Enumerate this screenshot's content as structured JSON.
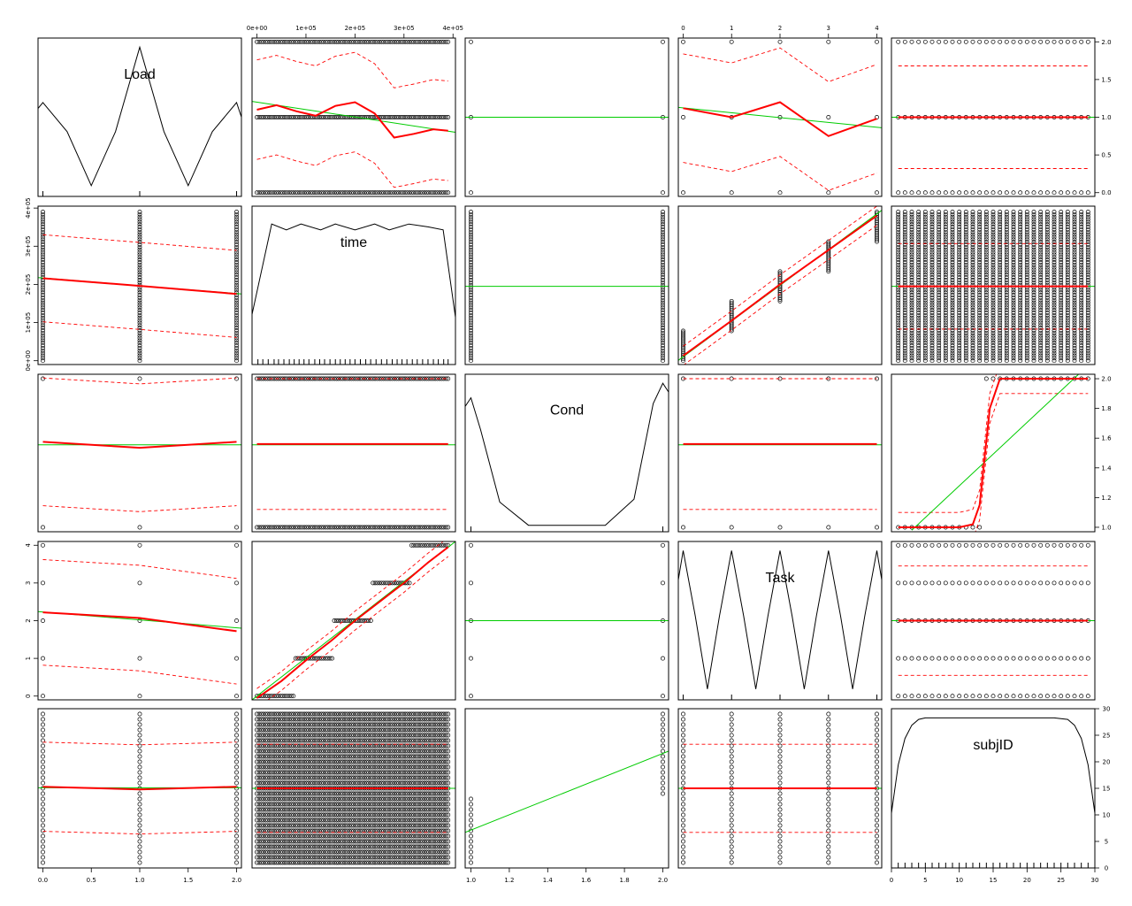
{
  "chart_data": {
    "type": "scatter",
    "subtype": "scatterplot-matrix",
    "variables": [
      "Load",
      "time",
      "Cond",
      "Task",
      "subjID"
    ],
    "domains": {
      "Load": [
        -0.05,
        2.05
      ],
      "time": [
        -10000,
        405000
      ],
      "Cond": [
        0.97,
        2.03
      ],
      "Task": [
        -0.1,
        4.1
      ],
      "subjID": [
        0,
        30
      ]
    },
    "axis_ticks": {
      "Load": [
        "0.0",
        "0.5",
        "1.0",
        "1.5",
        "2.0"
      ],
      "time": [
        "0e+00",
        "1e+05",
        "2e+05",
        "3e+05",
        "4e+05"
      ],
      "Cond": [
        "1.0",
        "1.2",
        "1.4",
        "1.6",
        "1.8",
        "2.0"
      ],
      "Task": [
        "0",
        "1",
        "2",
        "3",
        "4"
      ],
      "subjID": [
        "0",
        "5",
        "10",
        "15",
        "20",
        "25",
        "30"
      ]
    },
    "axis_tick_values": {
      "Load": [
        0,
        0.5,
        1,
        1.5,
        2
      ],
      "time": [
        0,
        100000,
        200000,
        300000,
        400000
      ],
      "Cond": [
        1.0,
        1.2,
        1.4,
        1.6,
        1.8,
        2.0
      ],
      "Task": [
        0,
        1,
        2,
        3,
        4
      ],
      "subjID": [
        0,
        5,
        10,
        15,
        20,
        25,
        30
      ]
    },
    "observations": {
      "Load_levels": [
        0,
        1,
        2
      ],
      "Cond_levels": [
        1,
        2
      ],
      "Task_levels": [
        0,
        1,
        2,
        3,
        4
      ],
      "subjID_values": [
        1,
        2,
        3,
        4,
        5,
        6,
        7,
        8,
        9,
        10,
        11,
        12,
        13,
        14,
        15,
        16,
        17,
        18,
        19,
        20,
        21,
        22,
        23,
        24,
        25,
        26,
        27,
        28,
        29
      ],
      "subjID_by_Cond": {
        "1": [
          1,
          2,
          3,
          4,
          5,
          6,
          7,
          8,
          9,
          10,
          11,
          12,
          13
        ],
        "2": [
          14,
          15,
          16,
          17,
          18,
          19,
          20,
          21,
          22,
          23,
          24,
          25,
          26,
          27,
          28,
          29
        ]
      },
      "time_range": [
        0,
        390000
      ]
    },
    "diagonal": {
      "Load": {
        "x": [
          -0.05,
          0.0,
          0.25,
          0.5,
          0.75,
          1.0,
          1.25,
          1.5,
          1.75,
          2.0,
          2.05
        ],
        "y": [
          0.58,
          0.62,
          0.42,
          0.05,
          0.42,
          1.0,
          0.42,
          0.05,
          0.42,
          0.62,
          0.52
        ]
      },
      "time": {
        "x": [
          -10000,
          30000,
          60000,
          90000,
          130000,
          160000,
          200000,
          240000,
          270000,
          310000,
          350000,
          380000,
          405000
        ],
        "y": [
          0.32,
          0.94,
          0.9,
          0.94,
          0.9,
          0.94,
          0.9,
          0.94,
          0.9,
          0.94,
          0.92,
          0.9,
          0.3
        ]
      },
      "Cond": {
        "x": [
          0.97,
          1.0,
          1.05,
          1.15,
          1.3,
          1.5,
          1.7,
          1.85,
          1.95,
          2.0,
          2.03
        ],
        "y": [
          0.84,
          0.9,
          0.68,
          0.18,
          0.02,
          0.02,
          0.02,
          0.2,
          0.86,
          1.0,
          0.94
        ]
      },
      "Task": {
        "x": [
          -0.1,
          0.0,
          0.25,
          0.5,
          0.75,
          1.0,
          1.25,
          1.5,
          1.75,
          2.0,
          2.25,
          2.5,
          2.75,
          3.0,
          3.25,
          3.5,
          3.75,
          4.0,
          4.1
        ],
        "y": [
          0.8,
          1.0,
          0.55,
          0.05,
          0.55,
          1.0,
          0.55,
          0.05,
          0.55,
          1.0,
          0.55,
          0.05,
          0.55,
          1.0,
          0.55,
          0.05,
          0.55,
          1.0,
          0.8
        ]
      },
      "subjID": {
        "x": [
          0,
          1,
          2,
          3,
          4,
          5,
          8,
          12,
          18,
          24,
          26,
          27,
          28,
          29,
          30
        ],
        "y": [
          0.35,
          0.68,
          0.86,
          0.95,
          0.99,
          1.0,
          1.0,
          1.0,
          1.0,
          1.0,
          0.99,
          0.95,
          0.86,
          0.68,
          0.35
        ]
      }
    },
    "rug": {
      "time": [
        2000,
        12000,
        23000,
        35000,
        44000,
        55000,
        66000,
        76000,
        86000,
        96000,
        106000,
        118000,
        128000,
        138000,
        149000,
        160000,
        170000,
        180000,
        190000,
        200000,
        211000,
        222000,
        232000,
        243000,
        254000,
        265000,
        276000,
        286000,
        296000,
        306000,
        317000,
        327000,
        338000,
        349000,
        360000,
        370000,
        381000,
        390000
      ],
      "subjID": [
        1,
        2,
        3,
        4,
        5,
        6,
        7,
        8,
        9,
        10,
        11,
        12,
        13,
        14,
        15,
        16,
        17,
        18,
        19,
        20,
        21,
        22,
        23,
        24,
        25,
        26,
        27,
        28,
        29
      ]
    },
    "panels": {
      "time|Load": {
        "linear": [
          [
            -10000,
            1.21
          ],
          [
            405000,
            0.8
          ]
        ],
        "smooth": [
          [
            0,
            1.1
          ],
          [
            40000,
            1.16
          ],
          [
            80000,
            1.08
          ],
          [
            120000,
            1.02
          ],
          [
            160000,
            1.15
          ],
          [
            200000,
            1.2
          ],
          [
            240000,
            1.05
          ],
          [
            280000,
            0.73
          ],
          [
            320000,
            0.78
          ],
          [
            360000,
            0.84
          ],
          [
            390000,
            0.82
          ]
        ],
        "band": {
          "offset": 0.66
        }
      },
      "Cond|Load": {
        "linear": [
          [
            0.97,
            1.0
          ],
          [
            2.03,
            1.0
          ]
        ]
      },
      "Task|Load": {
        "linear": [
          [
            -0.1,
            1.13
          ],
          [
            4.1,
            0.86
          ]
        ],
        "smooth": [
          [
            0,
            1.12
          ],
          [
            1,
            1.0
          ],
          [
            2,
            1.2
          ],
          [
            3,
            0.75
          ],
          [
            4,
            0.98
          ]
        ],
        "band": {
          "offset": 0.72
        }
      },
      "subjID|Load": {
        "linear": [
          [
            0,
            1.0
          ],
          [
            30,
            1.0
          ]
        ],
        "smooth": [
          [
            1,
            1.0
          ],
          [
            29,
            1.0
          ]
        ],
        "band": {
          "offset": 0.68
        }
      },
      "Load|time": {
        "linear": [
          [
            -0.05,
            218000
          ],
          [
            2.05,
            175000
          ]
        ],
        "smooth": [
          [
            0,
            216000
          ],
          [
            1,
            196000
          ],
          [
            2,
            175000
          ]
        ],
        "band": {
          "offset": 114000
        }
      },
      "Cond|time": {
        "linear": [
          [
            0.97,
            195000
          ],
          [
            2.03,
            195000
          ]
        ]
      },
      "Task|time": {
        "linear": [
          [
            -0.1,
            1000
          ],
          [
            4.1,
            394000
          ]
        ],
        "smooth": [
          [
            0,
            13000
          ],
          [
            1,
            105000
          ],
          [
            2,
            200000
          ],
          [
            3,
            290000
          ],
          [
            4,
            380000
          ]
        ],
        "band": {
          "offset": 25000
        }
      },
      "subjID|time": {
        "linear": [
          [
            0,
            195000
          ],
          [
            30,
            195000
          ]
        ],
        "smooth": [
          [
            1,
            195000
          ],
          [
            29,
            195000
          ]
        ],
        "band": {
          "offset": 112000
        }
      },
      "Load|Cond": {
        "linear": [
          [
            -0.05,
            1.555
          ],
          [
            2.05,
            1.555
          ]
        ],
        "smooth": [
          [
            0,
            1.575
          ],
          [
            1,
            1.535
          ],
          [
            2,
            1.575
          ]
        ],
        "band": {
          "offset": 0.43
        }
      },
      "time|Cond": {
        "linear": [
          [
            -10000,
            1.555
          ],
          [
            405000,
            1.555
          ]
        ],
        "smooth": [
          [
            0,
            1.56
          ],
          [
            390000,
            1.56
          ]
        ],
        "band": {
          "offset": 0.44
        }
      },
      "Task|Cond": {
        "linear": [
          [
            -0.1,
            1.555
          ],
          [
            4.1,
            1.555
          ]
        ],
        "smooth": [
          [
            0,
            1.56
          ],
          [
            4,
            1.56
          ]
        ],
        "band": {
          "offset": 0.44
        }
      },
      "subjID|Cond": {
        "linear": [
          [
            3,
            0.98
          ],
          [
            27.6,
            2.03
          ]
        ],
        "smooth": [
          [
            1,
            1.0
          ],
          [
            10,
            1.0
          ],
          [
            12,
            1.02
          ],
          [
            13,
            1.15
          ],
          [
            14.5,
            1.8
          ],
          [
            16,
            2.0
          ],
          [
            29,
            2.0
          ]
        ],
        "band": {
          "offset": 0.1
        }
      },
      "Load|Task": {
        "linear": [
          [
            -0.05,
            2.24
          ],
          [
            2.05,
            1.8
          ]
        ],
        "smooth": [
          [
            0,
            2.22
          ],
          [
            1,
            2.07
          ],
          [
            2,
            1.72
          ]
        ],
        "band": {
          "offset": 1.4
        }
      },
      "time|Task": {
        "linear": [
          [
            -10000,
            -0.1
          ],
          [
            405000,
            4.1
          ]
        ],
        "smooth": [
          [
            0,
            -0.05
          ],
          [
            50000,
            0.4
          ],
          [
            100000,
            0.95
          ],
          [
            150000,
            1.45
          ],
          [
            200000,
            2.0
          ],
          [
            250000,
            2.5
          ],
          [
            300000,
            3.0
          ],
          [
            350000,
            3.55
          ],
          [
            390000,
            3.95
          ]
        ],
        "band": {
          "offset": 0.25
        }
      },
      "Cond|Task": {
        "linear": [
          [
            0.97,
            2.0
          ],
          [
            2.03,
            2.0
          ]
        ]
      },
      "subjID|Task": {
        "linear": [
          [
            0,
            2.0
          ],
          [
            30,
            2.0
          ]
        ],
        "smooth": [
          [
            1,
            2.0
          ],
          [
            29,
            2.0
          ]
        ],
        "band": {
          "offset": 1.45
        }
      },
      "Load|subjID": {
        "linear": [
          [
            -0.05,
            15.1
          ],
          [
            2.05,
            15.1
          ]
        ],
        "smooth": [
          [
            0,
            15.3
          ],
          [
            1,
            14.8
          ],
          [
            2,
            15.3
          ]
        ],
        "band": {
          "offset": 8.4
        }
      },
      "time|subjID": {
        "linear": [
          [
            -10000,
            15.0
          ],
          [
            405000,
            15.0
          ]
        ],
        "smooth": [
          [
            0,
            15.0
          ],
          [
            390000,
            15.0
          ]
        ],
        "band": {
          "offset": 8.3
        }
      },
      "Cond|subjID": {
        "linear": [
          [
            0.97,
            6.7
          ],
          [
            2.03,
            22.0
          ]
        ]
      },
      "Task|subjID": {
        "linear": [
          [
            -0.1,
            15.0
          ],
          [
            4.1,
            15.0
          ]
        ],
        "smooth": [
          [
            0,
            15.0
          ],
          [
            4,
            15.0
          ]
        ],
        "band": {
          "offset": 8.3
        }
      }
    },
    "colors": {
      "points": "#000000",
      "linear_fit": "#00cc00",
      "smooth_fit": "#ff0000",
      "spread_band": "#ff0000",
      "density": "#000000"
    },
    "grid": false
  }
}
